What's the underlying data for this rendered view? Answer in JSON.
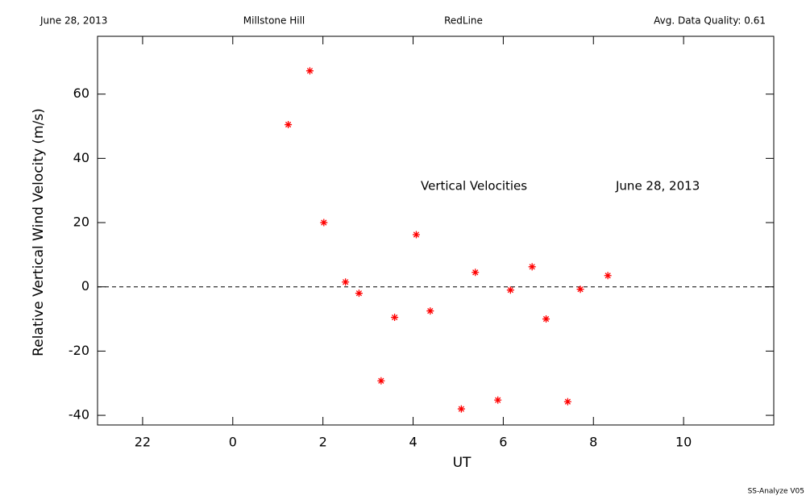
{
  "chart_data": {
    "type": "scatter",
    "header": [
      "June 28, 2013",
      "Millstone Hill",
      "RedLine",
      "Avg. Data Quality: 0.61"
    ],
    "annotations": [
      "Vertical Velocities",
      "June 28, 2013"
    ],
    "footer": "SS-Analyze V05",
    "xlabel": "UT",
    "ylabel": "Relative Vertical Wind Velocity (m/s)",
    "xlim": [
      -3,
      12
    ],
    "ylim": [
      -43,
      78
    ],
    "xticks": [
      {
        "value": -2,
        "label": "22"
      },
      0,
      2,
      4,
      6,
      8,
      10
    ],
    "yticks": [
      -40,
      -20,
      0,
      20,
      40,
      60
    ],
    "reference_line": 0,
    "series": [
      {
        "color": "#ff0000",
        "x": [
          1.23,
          1.71,
          2.02,
          2.5,
          2.8,
          3.29,
          3.59,
          4.07,
          4.38,
          5.07,
          5.38,
          5.88,
          6.16,
          6.64,
          6.95,
          7.43,
          7.71,
          8.32
        ],
        "values": [
          50.5,
          67.25,
          20,
          1.5,
          -2,
          -29.25,
          -9.5,
          16.25,
          -7.5,
          -38,
          4.5,
          -35.25,
          -1,
          6.25,
          -10,
          -35.75,
          -0.75,
          3.5
        ]
      }
    ]
  }
}
